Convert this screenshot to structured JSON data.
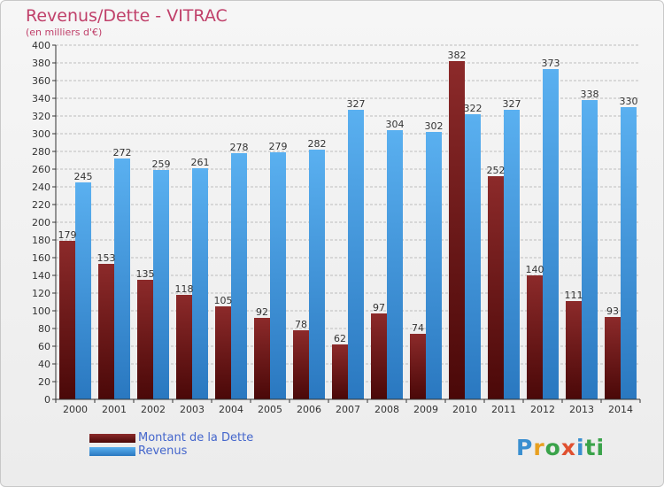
{
  "header": {
    "title": "Revenus/Dette - VITRAC",
    "subtitle": "(en milliers d'€)"
  },
  "legend": {
    "items": [
      {
        "label": "Montant de la Dette",
        "color": "#7a1a1a"
      },
      {
        "label": "Revenus",
        "color": "#4aa0e6"
      }
    ]
  },
  "logo": {
    "text": "Proxiti"
  },
  "colors": {
    "debt": "#7a1a1a",
    "revenue": "#4aa0e6",
    "axis": "#333333",
    "grid": "#bdbdbd"
  },
  "chart_data": {
    "type": "bar",
    "title": "Revenus/Dette - VITRAC",
    "ylabel": "",
    "xlabel": "",
    "ylim": [
      0,
      400
    ],
    "ytick_step": 20,
    "grid": true,
    "legend_position": "bottom-left",
    "categories": [
      "2000",
      "2001",
      "2002",
      "2003",
      "2004",
      "2005",
      "2006",
      "2007",
      "2008",
      "2009",
      "2010",
      "2011",
      "2012",
      "2013",
      "2014"
    ],
    "series": [
      {
        "name": "Montant de la Dette",
        "values": [
          179,
          153,
          135,
          118,
          105,
          92,
          78,
          62,
          97,
          74,
          382,
          252,
          140,
          111,
          93
        ]
      },
      {
        "name": "Revenus",
        "values": [
          245,
          272,
          259,
          261,
          278,
          279,
          282,
          327,
          304,
          302,
          322,
          327,
          373,
          338,
          330
        ]
      }
    ]
  }
}
